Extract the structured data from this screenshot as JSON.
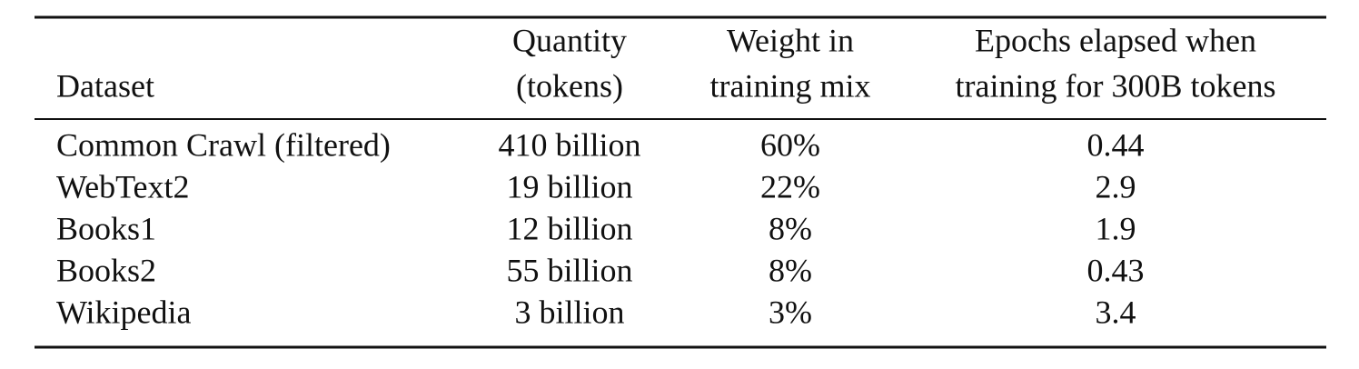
{
  "table": {
    "header": [
      [
        "Dataset"
      ],
      [
        "Quantity",
        "(tokens)"
      ],
      [
        "Weight in",
        "training mix"
      ],
      [
        "Epochs elapsed when",
        "training for 300B tokens"
      ]
    ],
    "rows": [
      [
        "Common Crawl (filtered)",
        "410 billion",
        "60%",
        "0.44"
      ],
      [
        "WebText2",
        "19 billion",
        "22%",
        "2.9"
      ],
      [
        "Books1",
        "12 billion",
        "8%",
        "1.9"
      ],
      [
        "Books2",
        "55 billion",
        "8%",
        "0.43"
      ],
      [
        "Wikipedia",
        "3 billion",
        "3%",
        "3.4"
      ]
    ]
  }
}
